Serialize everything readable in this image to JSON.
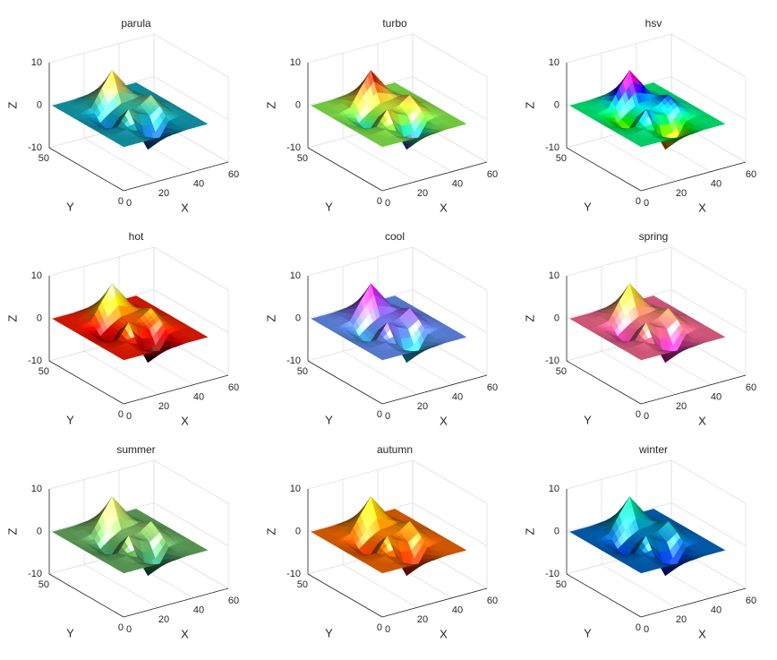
{
  "chart_data": [
    {
      "type": "surface",
      "title": "parula",
      "xlabel": "X",
      "ylabel": "Y",
      "zlabel": "Z",
      "x": [
        1,
        7,
        13,
        19,
        25,
        31,
        37,
        43,
        49
      ],
      "y": [
        1,
        7,
        13,
        19,
        25,
        31,
        37,
        43,
        49
      ],
      "z": [
        [
          0,
          0,
          0,
          -0.1,
          -0.2,
          -0.2,
          0,
          0,
          0
        ],
        [
          0,
          0,
          0,
          -1.0,
          -3.0,
          -2.0,
          -0.3,
          0,
          0
        ],
        [
          0,
          0,
          0.3,
          -0.7,
          -5.7,
          -4.3,
          -0.4,
          0,
          0
        ],
        [
          0,
          -0.3,
          -0.3,
          3.1,
          1.4,
          0.2,
          1.8,
          0.4,
          0
        ],
        [
          0,
          -0.7,
          -2.8,
          0.1,
          1.0,
          1.6,
          3.3,
          0.7,
          0
        ],
        [
          0,
          -0.4,
          -1.8,
          0,
          1.4,
          1.6,
          2.0,
          0.4,
          0
        ],
        [
          0,
          0,
          0.5,
          4.4,
          8.0,
          4.7,
          1.2,
          0.1,
          0
        ],
        [
          0,
          0,
          0.4,
          2.1,
          3.7,
          2.1,
          0.4,
          0,
          0
        ],
        [
          0,
          0,
          0,
          0.2,
          0.3,
          0.2,
          0,
          0,
          0
        ]
      ],
      "xlim": [
        0,
        60
      ],
      "ylim": [
        0,
        50
      ],
      "zlim": [
        -10,
        10
      ],
      "xticks": [
        0,
        20,
        40,
        60
      ],
      "yticks": [
        0,
        50
      ],
      "zticks": [
        -10,
        0,
        10
      ],
      "grid": true,
      "colormap": [
        "#352a87",
        "#0f5cdd",
        "#1481d6",
        "#06a4ca",
        "#2eb7a4",
        "#87bf77",
        "#d1bb59",
        "#fec832",
        "#f9fb0e"
      ]
    },
    {
      "type": "surface",
      "title": "turbo",
      "xlabel": "X",
      "ylabel": "Y",
      "zlabel": "Z",
      "x": [
        1,
        7,
        13,
        19,
        25,
        31,
        37,
        43,
        49
      ],
      "y": [
        1,
        7,
        13,
        19,
        25,
        31,
        37,
        43,
        49
      ],
      "z": [
        [
          0,
          0,
          0,
          -0.1,
          -0.2,
          -0.2,
          0,
          0,
          0
        ],
        [
          0,
          0,
          0,
          -1.0,
          -3.0,
          -2.0,
          -0.3,
          0,
          0
        ],
        [
          0,
          0,
          0.3,
          -0.7,
          -5.7,
          -4.3,
          -0.4,
          0,
          0
        ],
        [
          0,
          -0.3,
          -0.3,
          3.1,
          1.4,
          0.2,
          1.8,
          0.4,
          0
        ],
        [
          0,
          -0.7,
          -2.8,
          0.1,
          1.0,
          1.6,
          3.3,
          0.7,
          0
        ],
        [
          0,
          -0.4,
          -1.8,
          0,
          1.4,
          1.6,
          2.0,
          0.4,
          0
        ],
        [
          0,
          0,
          0.5,
          4.4,
          8.0,
          4.7,
          1.2,
          0.1,
          0
        ],
        [
          0,
          0,
          0.4,
          2.1,
          3.7,
          2.1,
          0.4,
          0,
          0
        ],
        [
          0,
          0,
          0,
          0.2,
          0.3,
          0.2,
          0,
          0,
          0
        ]
      ],
      "xlim": [
        0,
        60
      ],
      "ylim": [
        0,
        50
      ],
      "zlim": [
        -10,
        10
      ],
      "xticks": [
        0,
        20,
        40,
        60
      ],
      "yticks": [
        0,
        50
      ],
      "zticks": [
        -10,
        0,
        10
      ],
      "grid": true,
      "colormap": [
        "#30123b",
        "#4686fb",
        "#1be5b5",
        "#72fe5e",
        "#c8ef34",
        "#faba39",
        "#f66b19",
        "#ca2a04",
        "#7a0403"
      ]
    },
    {
      "type": "surface",
      "title": "hsv",
      "xlabel": "X",
      "ylabel": "Y",
      "zlabel": "Z",
      "x": [
        1,
        7,
        13,
        19,
        25,
        31,
        37,
        43,
        49
      ],
      "y": [
        1,
        7,
        13,
        19,
        25,
        31,
        37,
        43,
        49
      ],
      "z": [
        [
          0,
          0,
          0,
          -0.1,
          -0.2,
          -0.2,
          0,
          0,
          0
        ],
        [
          0,
          0,
          0,
          -1.0,
          -3.0,
          -2.0,
          -0.3,
          0,
          0
        ],
        [
          0,
          0,
          0.3,
          -0.7,
          -5.7,
          -4.3,
          -0.4,
          0,
          0
        ],
        [
          0,
          -0.3,
          -0.3,
          3.1,
          1.4,
          0.2,
          1.8,
          0.4,
          0
        ],
        [
          0,
          -0.7,
          -2.8,
          0.1,
          1.0,
          1.6,
          3.3,
          0.7,
          0
        ],
        [
          0,
          -0.4,
          -1.8,
          0,
          1.4,
          1.6,
          2.0,
          0.4,
          0
        ],
        [
          0,
          0,
          0.5,
          4.4,
          8.0,
          4.7,
          1.2,
          0.1,
          0
        ],
        [
          0,
          0,
          0.4,
          2.1,
          3.7,
          2.1,
          0.4,
          0,
          0
        ],
        [
          0,
          0,
          0,
          0.2,
          0.3,
          0.2,
          0,
          0,
          0
        ]
      ],
      "xlim": [
        0,
        60
      ],
      "ylim": [
        0,
        50
      ],
      "zlim": [
        -10,
        10
      ],
      "xticks": [
        0,
        20,
        40,
        60
      ],
      "yticks": [
        0,
        50
      ],
      "zticks": [
        -10,
        0,
        10
      ],
      "grid": true,
      "colormap": [
        "#ff0000",
        "#ffff00",
        "#00ff00",
        "#00ffff",
        "#0000ff",
        "#ff00ff",
        "#ff0000"
      ]
    },
    {
      "type": "surface",
      "title": "hot",
      "xlabel": "X",
      "ylabel": "Y",
      "zlabel": "Z",
      "x": [
        1,
        7,
        13,
        19,
        25,
        31,
        37,
        43,
        49
      ],
      "y": [
        1,
        7,
        13,
        19,
        25,
        31,
        37,
        43,
        49
      ],
      "z": [
        [
          0,
          0,
          0,
          -0.1,
          -0.2,
          -0.2,
          0,
          0,
          0
        ],
        [
          0,
          0,
          0,
          -1.0,
          -3.0,
          -2.0,
          -0.3,
          0,
          0
        ],
        [
          0,
          0,
          0.3,
          -0.7,
          -5.7,
          -4.3,
          -0.4,
          0,
          0
        ],
        [
          0,
          -0.3,
          -0.3,
          3.1,
          1.4,
          0.2,
          1.8,
          0.4,
          0
        ],
        [
          0,
          -0.7,
          -2.8,
          0.1,
          1.0,
          1.6,
          3.3,
          0.7,
          0
        ],
        [
          0,
          -0.4,
          -1.8,
          0,
          1.4,
          1.6,
          2.0,
          0.4,
          0
        ],
        [
          0,
          0,
          0.5,
          4.4,
          8.0,
          4.7,
          1.2,
          0.1,
          0
        ],
        [
          0,
          0,
          0.4,
          2.1,
          3.7,
          2.1,
          0.4,
          0,
          0
        ],
        [
          0,
          0,
          0,
          0.2,
          0.3,
          0.2,
          0,
          0,
          0
        ]
      ],
      "xlim": [
        0,
        60
      ],
      "ylim": [
        0,
        50
      ],
      "zlim": [
        -10,
        10
      ],
      "xticks": [
        0,
        20,
        40,
        60
      ],
      "yticks": [
        0,
        50
      ],
      "zticks": [
        -10,
        0,
        10
      ],
      "grid": true,
      "colormap": [
        "#0b0000",
        "#550000",
        "#aa0000",
        "#ff0000",
        "#ff5500",
        "#ffaa00",
        "#ffff00",
        "#ffff80",
        "#ffffff"
      ]
    },
    {
      "type": "surface",
      "title": "cool",
      "xlabel": "X",
      "ylabel": "Y",
      "zlabel": "Z",
      "x": [
        1,
        7,
        13,
        19,
        25,
        31,
        37,
        43,
        49
      ],
      "y": [
        1,
        7,
        13,
        19,
        25,
        31,
        37,
        43,
        49
      ],
      "z": [
        [
          0,
          0,
          0,
          -0.1,
          -0.2,
          -0.2,
          0,
          0,
          0
        ],
        [
          0,
          0,
          0,
          -1.0,
          -3.0,
          -2.0,
          -0.3,
          0,
          0
        ],
        [
          0,
          0,
          0.3,
          -0.7,
          -5.7,
          -4.3,
          -0.4,
          0,
          0
        ],
        [
          0,
          -0.3,
          -0.3,
          3.1,
          1.4,
          0.2,
          1.8,
          0.4,
          0
        ],
        [
          0,
          -0.7,
          -2.8,
          0.1,
          1.0,
          1.6,
          3.3,
          0.7,
          0
        ],
        [
          0,
          -0.4,
          -1.8,
          0,
          1.4,
          1.6,
          2.0,
          0.4,
          0
        ],
        [
          0,
          0,
          0.5,
          4.4,
          8.0,
          4.7,
          1.2,
          0.1,
          0
        ],
        [
          0,
          0,
          0.4,
          2.1,
          3.7,
          2.1,
          0.4,
          0,
          0
        ],
        [
          0,
          0,
          0,
          0.2,
          0.3,
          0.2,
          0,
          0,
          0
        ]
      ],
      "xlim": [
        0,
        60
      ],
      "ylim": [
        0,
        50
      ],
      "zlim": [
        -10,
        10
      ],
      "xticks": [
        0,
        20,
        40,
        60
      ],
      "yticks": [
        0,
        50
      ],
      "zticks": [
        -10,
        0,
        10
      ],
      "grid": true,
      "colormap": [
        "#00ffff",
        "#ff00ff"
      ]
    },
    {
      "type": "surface",
      "title": "spring",
      "xlabel": "X",
      "ylabel": "Y",
      "zlabel": "Z",
      "x": [
        1,
        7,
        13,
        19,
        25,
        31,
        37,
        43,
        49
      ],
      "y": [
        1,
        7,
        13,
        19,
        25,
        31,
        37,
        43,
        49
      ],
      "z": [
        [
          0,
          0,
          0,
          -0.1,
          -0.2,
          -0.2,
          0,
          0,
          0
        ],
        [
          0,
          0,
          0,
          -1.0,
          -3.0,
          -2.0,
          -0.3,
          0,
          0
        ],
        [
          0,
          0,
          0.3,
          -0.7,
          -5.7,
          -4.3,
          -0.4,
          0,
          0
        ],
        [
          0,
          -0.3,
          -0.3,
          3.1,
          1.4,
          0.2,
          1.8,
          0.4,
          0
        ],
        [
          0,
          -0.7,
          -2.8,
          0.1,
          1.0,
          1.6,
          3.3,
          0.7,
          0
        ],
        [
          0,
          -0.4,
          -1.8,
          0,
          1.4,
          1.6,
          2.0,
          0.4,
          0
        ],
        [
          0,
          0,
          0.5,
          4.4,
          8.0,
          4.7,
          1.2,
          0.1,
          0
        ],
        [
          0,
          0,
          0.4,
          2.1,
          3.7,
          2.1,
          0.4,
          0,
          0
        ],
        [
          0,
          0,
          0,
          0.2,
          0.3,
          0.2,
          0,
          0,
          0
        ]
      ],
      "xlim": [
        0,
        60
      ],
      "ylim": [
        0,
        50
      ],
      "zlim": [
        -10,
        10
      ],
      "xticks": [
        0,
        20,
        40,
        60
      ],
      "yticks": [
        0,
        50
      ],
      "zticks": [
        -10,
        0,
        10
      ],
      "grid": true,
      "colormap": [
        "#ff00ff",
        "#ffff00"
      ]
    },
    {
      "type": "surface",
      "title": "summer",
      "xlabel": "X",
      "ylabel": "Y",
      "zlabel": "Z",
      "x": [
        1,
        7,
        13,
        19,
        25,
        31,
        37,
        43,
        49
      ],
      "y": [
        1,
        7,
        13,
        19,
        25,
        31,
        37,
        43,
        49
      ],
      "z": [
        [
          0,
          0,
          0,
          -0.1,
          -0.2,
          -0.2,
          0,
          0,
          0
        ],
        [
          0,
          0,
          0,
          -1.0,
          -3.0,
          -2.0,
          -0.3,
          0,
          0
        ],
        [
          0,
          0,
          0.3,
          -0.7,
          -5.7,
          -4.3,
          -0.4,
          0,
          0
        ],
        [
          0,
          -0.3,
          -0.3,
          3.1,
          1.4,
          0.2,
          1.8,
          0.4,
          0
        ],
        [
          0,
          -0.7,
          -2.8,
          0.1,
          1.0,
          1.6,
          3.3,
          0.7,
          0
        ],
        [
          0,
          -0.4,
          -1.8,
          0,
          1.4,
          1.6,
          2.0,
          0.4,
          0
        ],
        [
          0,
          0,
          0.5,
          4.4,
          8.0,
          4.7,
          1.2,
          0.1,
          0
        ],
        [
          0,
          0,
          0.4,
          2.1,
          3.7,
          2.1,
          0.4,
          0,
          0
        ],
        [
          0,
          0,
          0,
          0.2,
          0.3,
          0.2,
          0,
          0,
          0
        ]
      ],
      "xlim": [
        0,
        60
      ],
      "ylim": [
        0,
        50
      ],
      "zlim": [
        -10,
        10
      ],
      "xticks": [
        0,
        20,
        40,
        60
      ],
      "yticks": [
        0,
        50
      ],
      "zticks": [
        -10,
        0,
        10
      ],
      "grid": true,
      "colormap": [
        "#008066",
        "#ffff66"
      ]
    },
    {
      "type": "surface",
      "title": "autumn",
      "xlabel": "X",
      "ylabel": "Y",
      "zlabel": "Z",
      "x": [
        1,
        7,
        13,
        19,
        25,
        31,
        37,
        43,
        49
      ],
      "y": [
        1,
        7,
        13,
        19,
        25,
        31,
        37,
        43,
        49
      ],
      "z": [
        [
          0,
          0,
          0,
          -0.1,
          -0.2,
          -0.2,
          0,
          0,
          0
        ],
        [
          0,
          0,
          0,
          -1.0,
          -3.0,
          -2.0,
          -0.3,
          0,
          0
        ],
        [
          0,
          0,
          0.3,
          -0.7,
          -5.7,
          -4.3,
          -0.4,
          0,
          0
        ],
        [
          0,
          -0.3,
          -0.3,
          3.1,
          1.4,
          0.2,
          1.8,
          0.4,
          0
        ],
        [
          0,
          -0.7,
          -2.8,
          0.1,
          1.0,
          1.6,
          3.3,
          0.7,
          0
        ],
        [
          0,
          -0.4,
          -1.8,
          0,
          1.4,
          1.6,
          2.0,
          0.4,
          0
        ],
        [
          0,
          0,
          0.5,
          4.4,
          8.0,
          4.7,
          1.2,
          0.1,
          0
        ],
        [
          0,
          0,
          0.4,
          2.1,
          3.7,
          2.1,
          0.4,
          0,
          0
        ],
        [
          0,
          0,
          0,
          0.2,
          0.3,
          0.2,
          0,
          0,
          0
        ]
      ],
      "xlim": [
        0,
        60
      ],
      "ylim": [
        0,
        50
      ],
      "zlim": [
        -10,
        10
      ],
      "xticks": [
        0,
        20,
        40,
        60
      ],
      "yticks": [
        0,
        50
      ],
      "zticks": [
        -10,
        0,
        10
      ],
      "grid": true,
      "colormap": [
        "#ff0000",
        "#ffff00"
      ]
    },
    {
      "type": "surface",
      "title": "winter",
      "xlabel": "X",
      "ylabel": "Y",
      "zlabel": "Z",
      "x": [
        1,
        7,
        13,
        19,
        25,
        31,
        37,
        43,
        49
      ],
      "y": [
        1,
        7,
        13,
        19,
        25,
        31,
        37,
        43,
        49
      ],
      "z": [
        [
          0,
          0,
          0,
          -0.1,
          -0.2,
          -0.2,
          0,
          0,
          0
        ],
        [
          0,
          0,
          0,
          -1.0,
          -3.0,
          -2.0,
          -0.3,
          0,
          0
        ],
        [
          0,
          0,
          0.3,
          -0.7,
          -5.7,
          -4.3,
          -0.4,
          0,
          0
        ],
        [
          0,
          -0.3,
          -0.3,
          3.1,
          1.4,
          0.2,
          1.8,
          0.4,
          0
        ],
        [
          0,
          -0.7,
          -2.8,
          0.1,
          1.0,
          1.6,
          3.3,
          0.7,
          0
        ],
        [
          0,
          -0.4,
          -1.8,
          0,
          1.4,
          1.6,
          2.0,
          0.4,
          0
        ],
        [
          0,
          0,
          0.5,
          4.4,
          8.0,
          4.7,
          1.2,
          0.1,
          0
        ],
        [
          0,
          0,
          0.4,
          2.1,
          3.7,
          2.1,
          0.4,
          0,
          0
        ],
        [
          0,
          0,
          0,
          0.2,
          0.3,
          0.2,
          0,
          0,
          0
        ]
      ],
      "xlim": [
        0,
        60
      ],
      "ylim": [
        0,
        50
      ],
      "zlim": [
        -10,
        10
      ],
      "xticks": [
        0,
        20,
        40,
        60
      ],
      "yticks": [
        0,
        50
      ],
      "zticks": [
        -10,
        0,
        10
      ],
      "grid": true,
      "colormap": [
        "#0000ff",
        "#00ff80"
      ]
    }
  ]
}
